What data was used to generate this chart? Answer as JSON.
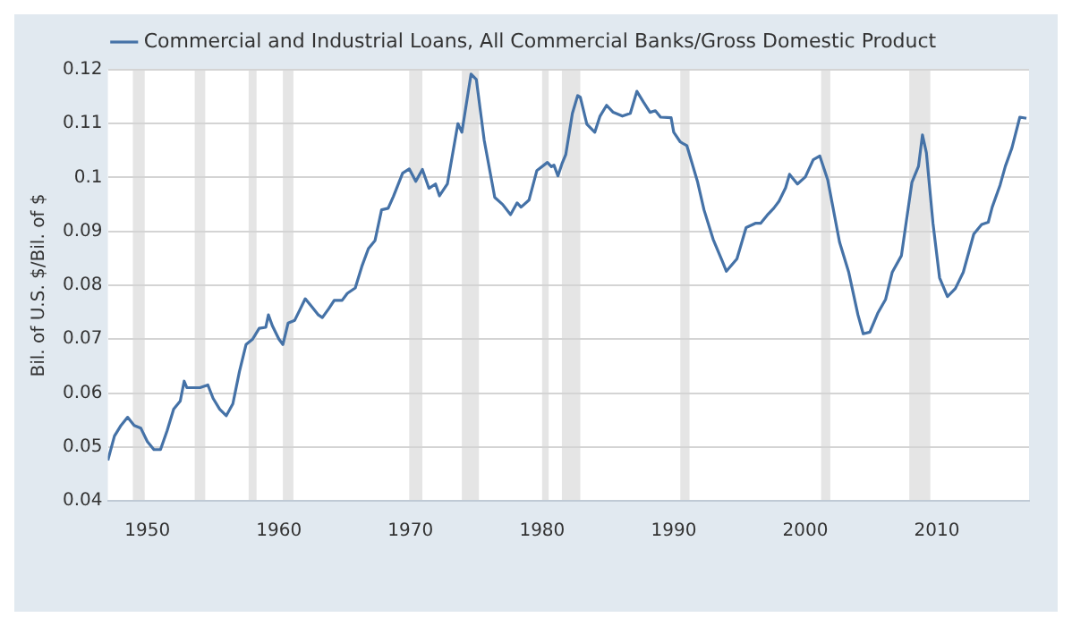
{
  "chart_data": {
    "type": "line",
    "ylabel": "Bil. of U.S. $/Bil. of $",
    "legend": "top",
    "grid": "y",
    "marker": "none",
    "line_style": "solid",
    "xlim": [
      1947,
      2017
    ],
    "xticks": [
      1950,
      1960,
      1970,
      1980,
      1990,
      2000,
      2010
    ],
    "ylim": [
      0.04,
      0.12
    ],
    "yticks": [
      0.04,
      0.05,
      0.06,
      0.07,
      0.08,
      0.09,
      0.1,
      0.11,
      0.12
    ],
    "bands": [
      {
        "axis": "x",
        "from": 1948.9,
        "to": 1949.8,
        "color": "#e5e5e5"
      },
      {
        "axis": "x",
        "from": 1953.6,
        "to": 1954.4,
        "color": "#e5e5e5"
      },
      {
        "axis": "x",
        "from": 1957.7,
        "to": 1958.3,
        "color": "#e5e5e5"
      },
      {
        "axis": "x",
        "from": 1960.3,
        "to": 1961.1,
        "color": "#e5e5e5"
      },
      {
        "axis": "x",
        "from": 1969.9,
        "to": 1970.9,
        "color": "#e5e5e5"
      },
      {
        "axis": "x",
        "from": 1973.9,
        "to": 1975.2,
        "color": "#e5e5e5"
      },
      {
        "axis": "x",
        "from": 1980.0,
        "to": 1980.5,
        "color": "#e5e5e5"
      },
      {
        "axis": "x",
        "from": 1981.5,
        "to": 1982.9,
        "color": "#e5e5e5"
      },
      {
        "axis": "x",
        "from": 1990.5,
        "to": 1991.2,
        "color": "#e5e5e5"
      },
      {
        "axis": "x",
        "from": 2001.2,
        "to": 2001.9,
        "color": "#e5e5e5"
      },
      {
        "axis": "x",
        "from": 2007.9,
        "to": 2009.5,
        "color": "#e5e5e5"
      }
    ],
    "series": [
      {
        "name": "Commercial and Industrial Loans, All Commercial Banks/Gross Domestic Product",
        "color": "#4572a7",
        "x": [
          1947.0,
          1947.5,
          1948.0,
          1948.5,
          1949.0,
          1949.5,
          1950.0,
          1950.5,
          1951.0,
          1951.5,
          1952.0,
          1952.5,
          1952.8,
          1953.0,
          1954.0,
          1954.6,
          1955.0,
          1955.5,
          1956.0,
          1956.5,
          1957.0,
          1957.5,
          1958.0,
          1958.5,
          1959.0,
          1959.2,
          1959.5,
          1960.0,
          1960.3,
          1960.7,
          1961.2,
          1961.6,
          1962.0,
          1962.5,
          1963.0,
          1963.3,
          1963.8,
          1964.2,
          1964.8,
          1965.2,
          1965.8,
          1966.3,
          1966.8,
          1967.3,
          1967.8,
          1968.3,
          1968.7,
          1969.4,
          1969.9,
          1970.4,
          1970.9,
          1971.4,
          1971.9,
          1972.2,
          1972.8,
          1973.6,
          1973.9,
          1974.6,
          1975.0,
          1975.6,
          1976.4,
          1977.0,
          1977.6,
          1978.1,
          1978.4,
          1979.0,
          1979.6,
          1980.4,
          1980.7,
          1980.9,
          1981.2,
          1981.5,
          1981.8,
          1982.3,
          1982.7,
          1982.9,
          1983.4,
          1984.0,
          1984.4,
          1984.9,
          1985.4,
          1986.1,
          1986.7,
          1987.2,
          1987.7,
          1988.2,
          1988.6,
          1989.0,
          1989.8,
          1990.0,
          1990.5,
          1991.0,
          1991.8,
          1992.3,
          1993.0,
          1993.7,
          1994.0,
          1994.8,
          1995.5,
          1996.2,
          1996.6,
          1997.1,
          1997.6,
          1998.0,
          1998.5,
          1998.8,
          1999.4,
          2000.0,
          2000.6,
          2001.1,
          2001.7,
          2002.6,
          2003.3,
          2004.0,
          2004.4,
          2004.9,
          2005.5,
          2006.1,
          2006.6,
          2007.3,
          2008.1,
          2008.6,
          2008.9,
          2009.2,
          2009.7,
          2010.2,
          2010.8,
          2011.4,
          2012.0,
          2012.8,
          2013.4,
          2013.9,
          2014.2,
          2014.8,
          2015.2,
          2015.7,
          2016.3,
          2016.8
        ],
        "values": [
          0.0475,
          0.052,
          0.054,
          0.0555,
          0.054,
          0.0535,
          0.051,
          0.0495,
          0.0495,
          0.053,
          0.057,
          0.0585,
          0.0622,
          0.061,
          0.061,
          0.0615,
          0.059,
          0.057,
          0.0558,
          0.058,
          0.064,
          0.069,
          0.07,
          0.072,
          0.0722,
          0.0745,
          0.0725,
          0.07,
          0.069,
          0.073,
          0.0735,
          0.0755,
          0.0775,
          0.076,
          0.0745,
          0.074,
          0.0757,
          0.0772,
          0.0772,
          0.0785,
          0.0795,
          0.0835,
          0.0868,
          0.0883,
          0.094,
          0.0943,
          0.0965,
          0.1008,
          0.1016,
          0.0993,
          0.1015,
          0.098,
          0.0988,
          0.0966,
          0.0988,
          0.11,
          0.1084,
          0.1192,
          0.1182,
          0.1069,
          0.0963,
          0.095,
          0.0931,
          0.0953,
          0.0945,
          0.0958,
          0.1013,
          0.1028,
          0.102,
          0.1023,
          0.1003,
          0.1025,
          0.1043,
          0.1119,
          0.1152,
          0.1149,
          0.1099,
          0.1084,
          0.1114,
          0.1134,
          0.1121,
          0.1114,
          0.1119,
          0.116,
          0.114,
          0.1121,
          0.1124,
          0.1112,
          0.1111,
          0.1084,
          0.1066,
          0.1059,
          0.0993,
          0.094,
          0.0885,
          0.0844,
          0.0826,
          0.0849,
          0.0907,
          0.0915,
          0.0915,
          0.093,
          0.0943,
          0.0956,
          0.0981,
          0.1006,
          0.0988,
          0.1001,
          0.1033,
          0.104,
          0.0996,
          0.088,
          0.0824,
          0.0745,
          0.071,
          0.0713,
          0.0748,
          0.0774,
          0.0824,
          0.0855,
          0.0991,
          0.1021,
          0.1079,
          0.1046,
          0.0915,
          0.0814,
          0.0779,
          0.0794,
          0.0824,
          0.0895,
          0.0913,
          0.0917,
          0.0945,
          0.0986,
          0.1021,
          0.1055,
          0.1112,
          0.111
        ]
      }
    ]
  }
}
